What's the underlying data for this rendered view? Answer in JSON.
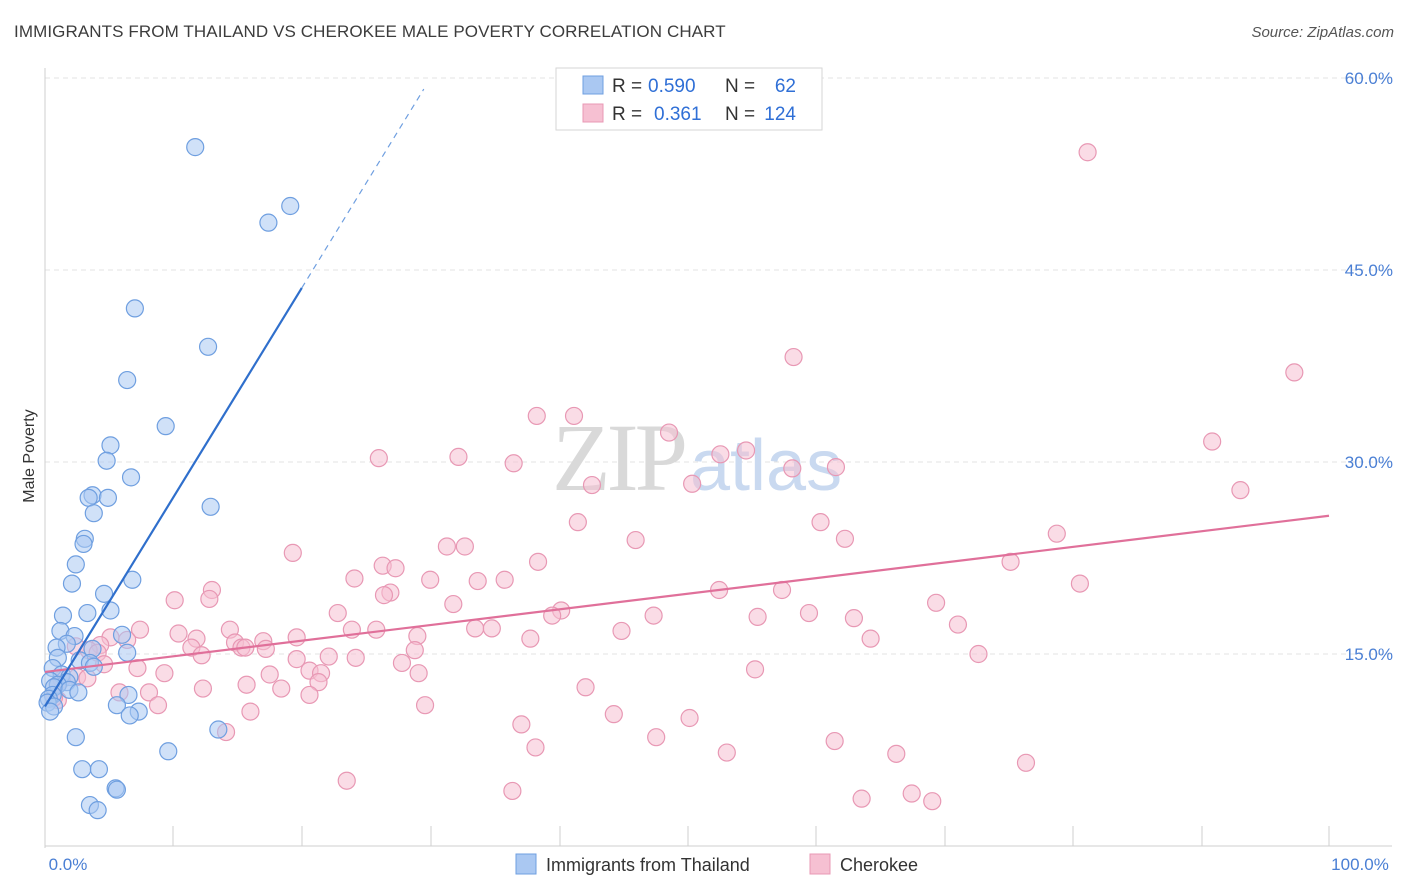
{
  "header": {
    "title": "IMMIGRANTS FROM THAILAND VS CHEROKEE MALE POVERTY CORRELATION CHART",
    "source": "Source: ZipAtlas.com"
  },
  "watermark": {
    "zip": "ZIP",
    "atlas": "atlas"
  },
  "legend_top": [
    {
      "r_label": "R =",
      "r_value": "0.590",
      "n_label": "N =",
      "n_value": "62"
    },
    {
      "r_label": "R =",
      "r_value": "0.361",
      "n_label": "N =",
      "n_value": "124"
    }
  ],
  "legend_bottom": [
    {
      "label": "Immigrants from Thailand"
    },
    {
      "label": "Cherokee"
    }
  ],
  "colors": {
    "blue_fill": "#aac8f2",
    "blue_stroke": "#6f9fe0",
    "blue_line": "#2f6fcc",
    "pink_fill": "#f6c0d2",
    "pink_stroke": "#e898b4",
    "pink_line": "#e0709a",
    "grid": "#e3e3e3",
    "axis_text": "#4a7fd4"
  },
  "chart_data": {
    "type": "scatter",
    "title": "IMMIGRANTS FROM THAILAND VS CHEROKEE MALE POVERTY CORRELATION CHART",
    "xlabel": "",
    "ylabel": "Male Poverty",
    "xlim": [
      0,
      100
    ],
    "ylim": [
      0,
      60
    ],
    "x_tick_labels": [
      "0.0%",
      "100.0%"
    ],
    "y_ticks": [
      15,
      30,
      45,
      60
    ],
    "y_tick_labels": [
      "15.0%",
      "30.0%",
      "45.0%",
      "60.0%"
    ],
    "grid": true,
    "legend_position": "top-center",
    "series": [
      {
        "name": "Immigrants from Thailand",
        "r": 0.59,
        "n": 62,
        "trend": {
          "x1": 0.0,
          "y1": 10.9,
          "x2": 20.0,
          "y2": 43.6,
          "dash_to_x": 29.5
        },
        "points": [
          [
            11.7,
            54.6
          ],
          [
            19.1,
            50.0
          ],
          [
            17.4,
            48.7
          ],
          [
            7.0,
            42.0
          ],
          [
            12.7,
            39.0
          ],
          [
            6.4,
            36.4
          ],
          [
            9.4,
            32.8
          ],
          [
            5.1,
            31.3
          ],
          [
            4.8,
            30.1
          ],
          [
            6.7,
            28.8
          ],
          [
            3.7,
            27.4
          ],
          [
            3.4,
            27.2
          ],
          [
            4.9,
            27.2
          ],
          [
            3.8,
            26.0
          ],
          [
            12.9,
            26.5
          ],
          [
            3.1,
            24.0
          ],
          [
            3.0,
            23.6
          ],
          [
            2.4,
            22.0
          ],
          [
            2.1,
            20.5
          ],
          [
            6.8,
            20.8
          ],
          [
            4.6,
            19.7
          ],
          [
            5.1,
            18.4
          ],
          [
            3.3,
            18.2
          ],
          [
            1.4,
            18.0
          ],
          [
            6.0,
            16.5
          ],
          [
            1.2,
            16.8
          ],
          [
            2.3,
            16.4
          ],
          [
            1.7,
            15.8
          ],
          [
            0.9,
            15.5
          ],
          [
            3.7,
            15.4
          ],
          [
            6.4,
            15.1
          ],
          [
            1.0,
            14.7
          ],
          [
            2.7,
            14.5
          ],
          [
            3.5,
            14.3
          ],
          [
            3.8,
            14.0
          ],
          [
            0.6,
            13.9
          ],
          [
            1.3,
            13.4
          ],
          [
            1.9,
            13.2
          ],
          [
            0.4,
            12.9
          ],
          [
            1.7,
            12.8
          ],
          [
            1.0,
            12.6
          ],
          [
            0.7,
            12.4
          ],
          [
            1.9,
            12.2
          ],
          [
            2.6,
            12.0
          ],
          [
            0.6,
            11.8
          ],
          [
            0.3,
            11.5
          ],
          [
            0.2,
            11.2
          ],
          [
            6.5,
            11.8
          ],
          [
            5.6,
            11.0
          ],
          [
            0.7,
            10.9
          ],
          [
            0.4,
            10.5
          ],
          [
            7.3,
            10.5
          ],
          [
            6.6,
            10.2
          ],
          [
            9.6,
            7.4
          ],
          [
            13.5,
            9.1
          ],
          [
            2.4,
            8.5
          ],
          [
            2.9,
            6.0
          ],
          [
            4.2,
            6.0
          ],
          [
            5.5,
            4.5
          ],
          [
            5.6,
            4.4
          ],
          [
            3.5,
            3.2
          ],
          [
            4.1,
            2.8
          ]
        ]
      },
      {
        "name": "Cherokee",
        "r": 0.361,
        "n": 124,
        "trend": {
          "x1": 0.0,
          "y1": 13.6,
          "x2": 100.0,
          "y2": 25.8
        },
        "points": [
          [
            81.2,
            54.2
          ],
          [
            58.3,
            38.2
          ],
          [
            97.3,
            37.0
          ],
          [
            38.3,
            33.6
          ],
          [
            41.2,
            33.6
          ],
          [
            48.6,
            32.3
          ],
          [
            90.9,
            31.6
          ],
          [
            54.6,
            30.9
          ],
          [
            26.0,
            30.3
          ],
          [
            32.2,
            30.4
          ],
          [
            52.6,
            30.6
          ],
          [
            36.5,
            29.9
          ],
          [
            58.2,
            29.5
          ],
          [
            61.6,
            29.6
          ],
          [
            42.6,
            28.2
          ],
          [
            50.4,
            28.3
          ],
          [
            93.1,
            27.8
          ],
          [
            41.5,
            25.3
          ],
          [
            60.4,
            25.3
          ],
          [
            78.8,
            24.4
          ],
          [
            46.0,
            23.9
          ],
          [
            62.3,
            24.0
          ],
          [
            31.3,
            23.4
          ],
          [
            32.7,
            23.4
          ],
          [
            19.3,
            22.9
          ],
          [
            38.4,
            22.2
          ],
          [
            75.2,
            22.2
          ],
          [
            26.3,
            21.9
          ],
          [
            27.3,
            21.7
          ],
          [
            24.1,
            20.9
          ],
          [
            30.0,
            20.8
          ],
          [
            33.7,
            20.7
          ],
          [
            35.8,
            20.8
          ],
          [
            80.6,
            20.5
          ],
          [
            52.5,
            20.0
          ],
          [
            57.4,
            20.0
          ],
          [
            13.0,
            20.0
          ],
          [
            26.9,
            19.8
          ],
          [
            26.4,
            19.6
          ],
          [
            12.8,
            19.3
          ],
          [
            10.1,
            19.2
          ],
          [
            69.4,
            19.0
          ],
          [
            31.8,
            18.9
          ],
          [
            40.2,
            18.4
          ],
          [
            22.8,
            18.2
          ],
          [
            47.4,
            18.0
          ],
          [
            59.5,
            18.2
          ],
          [
            55.5,
            17.9
          ],
          [
            39.5,
            18.0
          ],
          [
            63.0,
            17.8
          ],
          [
            71.1,
            17.3
          ],
          [
            10.4,
            16.6
          ],
          [
            14.4,
            16.9
          ],
          [
            23.9,
            16.9
          ],
          [
            25.8,
            16.9
          ],
          [
            33.5,
            17.0
          ],
          [
            34.8,
            17.0
          ],
          [
            44.9,
            16.8
          ],
          [
            7.4,
            16.9
          ],
          [
            11.8,
            16.2
          ],
          [
            19.6,
            16.3
          ],
          [
            29.0,
            16.4
          ],
          [
            37.8,
            16.2
          ],
          [
            64.3,
            16.2
          ],
          [
            5.1,
            16.3
          ],
          [
            6.4,
            16.1
          ],
          [
            14.8,
            15.9
          ],
          [
            17.0,
            16.0
          ],
          [
            4.3,
            15.7
          ],
          [
            2.4,
            15.6
          ],
          [
            11.4,
            15.5
          ],
          [
            15.3,
            15.5
          ],
          [
            15.6,
            15.5
          ],
          [
            17.2,
            15.4
          ],
          [
            28.8,
            15.3
          ],
          [
            3.4,
            15.3
          ],
          [
            4.1,
            15.1
          ],
          [
            72.7,
            15.0
          ],
          [
            12.2,
            14.9
          ],
          [
            22.1,
            14.8
          ],
          [
            19.6,
            14.6
          ],
          [
            24.2,
            14.7
          ],
          [
            27.8,
            14.3
          ],
          [
            4.6,
            14.2
          ],
          [
            55.3,
            13.8
          ],
          [
            7.2,
            13.9
          ],
          [
            20.6,
            13.7
          ],
          [
            21.5,
            13.5
          ],
          [
            9.3,
            13.5
          ],
          [
            17.5,
            13.4
          ],
          [
            29.1,
            13.5
          ],
          [
            2.5,
            13.2
          ],
          [
            1.3,
            13.0
          ],
          [
            3.3,
            13.1
          ],
          [
            21.3,
            12.8
          ],
          [
            1.0,
            12.6
          ],
          [
            15.7,
            12.6
          ],
          [
            12.3,
            12.3
          ],
          [
            18.4,
            12.3
          ],
          [
            42.1,
            12.4
          ],
          [
            5.8,
            12.0
          ],
          [
            8.1,
            12.0
          ],
          [
            20.6,
            11.8
          ],
          [
            1.0,
            11.4
          ],
          [
            0.7,
            11.6
          ],
          [
            29.6,
            11.0
          ],
          [
            8.8,
            11.0
          ],
          [
            16.0,
            10.5
          ],
          [
            44.3,
            10.3
          ],
          [
            50.2,
            10.0
          ],
          [
            37.1,
            9.5
          ],
          [
            14.1,
            8.9
          ],
          [
            47.6,
            8.5
          ],
          [
            61.5,
            8.2
          ],
          [
            38.2,
            7.7
          ],
          [
            53.1,
            7.3
          ],
          [
            66.3,
            7.2
          ],
          [
            76.4,
            6.5
          ],
          [
            23.5,
            5.1
          ],
          [
            36.4,
            4.3
          ],
          [
            63.6,
            3.7
          ],
          [
            67.5,
            4.1
          ],
          [
            69.1,
            3.5
          ]
        ]
      }
    ]
  }
}
